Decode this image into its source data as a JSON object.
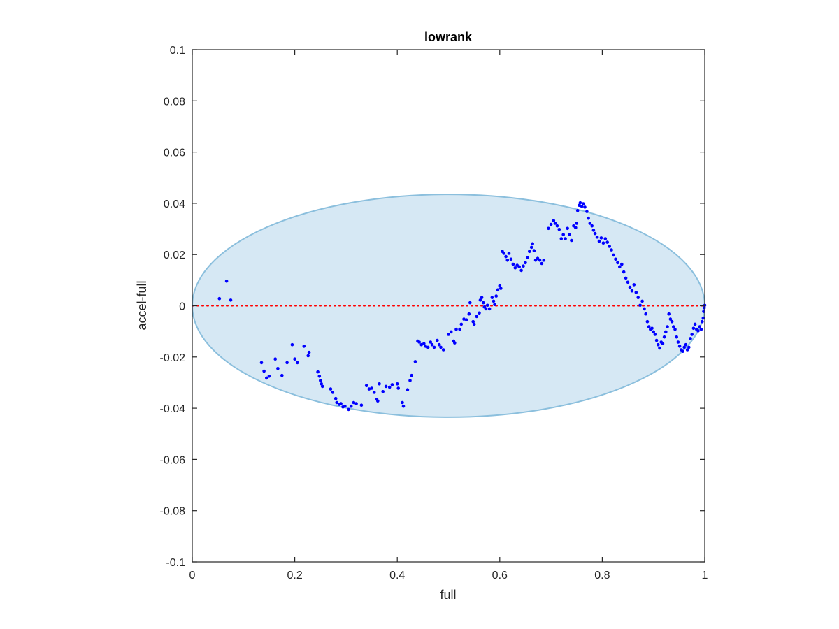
{
  "chart_data": {
    "type": "scatter",
    "title": "lowrank",
    "xlabel": "full",
    "ylabel": "accel-full",
    "xlim": [
      0,
      1
    ],
    "ylim": [
      -0.1,
      0.1
    ],
    "xticks": [
      0,
      0.2,
      0.4,
      0.6,
      0.8,
      1
    ],
    "xtick_labels": [
      "0",
      "0.2",
      "0.4",
      "0.6",
      "0.8",
      "1"
    ],
    "yticks": [
      -0.1,
      -0.08,
      -0.06,
      -0.04,
      -0.02,
      0,
      0.02,
      0.04,
      0.06,
      0.08,
      0.1
    ],
    "ytick_labels": [
      "-0.1",
      "-0.08",
      "-0.06",
      "-0.04",
      "-0.02",
      "0",
      "0.02",
      "0.04",
      "0.06",
      "0.08",
      "0.1"
    ],
    "grid": false,
    "reference_line": {
      "y": 0,
      "color": "#ff0000",
      "style": "dotted"
    },
    "ellipse": {
      "center": [
        0.5,
        0.0
      ],
      "radius_x": 0.5,
      "radius_y": 0.0435,
      "fill": "#d6e8f4",
      "stroke": "#8bbfdd"
    },
    "marker_color": "#0000ff",
    "points": [
      [
        0.053,
        0.0028
      ],
      [
        0.067,
        0.0096
      ],
      [
        0.075,
        0.0022
      ],
      [
        0.135,
        -0.0222
      ],
      [
        0.14,
        -0.0255
      ],
      [
        0.145,
        -0.0282
      ],
      [
        0.15,
        -0.0275
      ],
      [
        0.162,
        -0.0208
      ],
      [
        0.167,
        -0.0245
      ],
      [
        0.175,
        -0.0272
      ],
      [
        0.185,
        -0.0222
      ],
      [
        0.195,
        -0.0152
      ],
      [
        0.2,
        -0.0208
      ],
      [
        0.205,
        -0.0222
      ],
      [
        0.218,
        -0.0158
      ],
      [
        0.226,
        -0.0195
      ],
      [
        0.228,
        -0.0182
      ],
      [
        0.245,
        -0.0258
      ],
      [
        0.248,
        -0.0275
      ],
      [
        0.25,
        -0.0292
      ],
      [
        0.252,
        -0.0305
      ],
      [
        0.254,
        -0.0315
      ],
      [
        0.27,
        -0.0325
      ],
      [
        0.274,
        -0.0338
      ],
      [
        0.28,
        -0.0362
      ],
      [
        0.282,
        -0.0378
      ],
      [
        0.287,
        -0.0385
      ],
      [
        0.29,
        -0.0382
      ],
      [
        0.294,
        -0.0395
      ],
      [
        0.298,
        -0.0392
      ],
      [
        0.305,
        -0.0405
      ],
      [
        0.31,
        -0.0392
      ],
      [
        0.315,
        -0.0378
      ],
      [
        0.32,
        -0.0382
      ],
      [
        0.33,
        -0.0388
      ],
      [
        0.34,
        -0.0312
      ],
      [
        0.345,
        -0.0325
      ],
      [
        0.35,
        -0.0322
      ],
      [
        0.355,
        -0.0338
      ],
      [
        0.36,
        -0.0365
      ],
      [
        0.362,
        -0.0372
      ],
      [
        0.365,
        -0.0305
      ],
      [
        0.372,
        -0.0335
      ],
      [
        0.378,
        -0.0315
      ],
      [
        0.385,
        -0.0318
      ],
      [
        0.39,
        -0.0308
      ],
      [
        0.4,
        -0.0305
      ],
      [
        0.402,
        -0.0322
      ],
      [
        0.41,
        -0.0378
      ],
      [
        0.412,
        -0.0392
      ],
      [
        0.42,
        -0.0328
      ],
      [
        0.425,
        -0.0292
      ],
      [
        0.428,
        -0.0272
      ],
      [
        0.435,
        -0.0218
      ],
      [
        0.44,
        -0.0138
      ],
      [
        0.443,
        -0.0142
      ],
      [
        0.447,
        -0.0152
      ],
      [
        0.452,
        -0.0148
      ],
      [
        0.455,
        -0.0158
      ],
      [
        0.46,
        -0.0162
      ],
      [
        0.465,
        -0.0142
      ],
      [
        0.468,
        -0.0152
      ],
      [
        0.472,
        -0.0162
      ],
      [
        0.478,
        -0.0135
      ],
      [
        0.482,
        -0.0152
      ],
      [
        0.485,
        -0.0162
      ],
      [
        0.49,
        -0.0172
      ],
      [
        0.5,
        -0.0112
      ],
      [
        0.505,
        -0.0102
      ],
      [
        0.51,
        -0.0138
      ],
      [
        0.512,
        -0.0145
      ],
      [
        0.515,
        -0.0092
      ],
      [
        0.522,
        -0.0092
      ],
      [
        0.525,
        -0.0072
      ],
      [
        0.53,
        -0.0052
      ],
      [
        0.535,
        -0.0055
      ],
      [
        0.54,
        -0.0032
      ],
      [
        0.542,
        0.0012
      ],
      [
        0.548,
        -0.0062
      ],
      [
        0.55,
        -0.0072
      ],
      [
        0.555,
        -0.0042
      ],
      [
        0.56,
        -0.0028
      ],
      [
        0.562,
        0.0022
      ],
      [
        0.565,
        0.0032
      ],
      [
        0.568,
        0.0012
      ],
      [
        0.57,
        -0.0005
      ],
      [
        0.573,
        -0.0012
      ],
      [
        0.576,
        0.0002
      ],
      [
        0.58,
        -0.0012
      ],
      [
        0.585,
        0.0032
      ],
      [
        0.588,
        0.0018
      ],
      [
        0.59,
        0.0005
      ],
      [
        0.593,
        0.0038
      ],
      [
        0.596,
        0.0062
      ],
      [
        0.6,
        0.0078
      ],
      [
        0.602,
        0.0068
      ],
      [
        0.605,
        0.0212
      ],
      [
        0.608,
        0.0205
      ],
      [
        0.612,
        0.0192
      ],
      [
        0.615,
        0.0178
      ],
      [
        0.618,
        0.0205
      ],
      [
        0.622,
        0.0182
      ],
      [
        0.626,
        0.0162
      ],
      [
        0.63,
        0.0148
      ],
      [
        0.634,
        0.0158
      ],
      [
        0.638,
        0.0152
      ],
      [
        0.642,
        0.0138
      ],
      [
        0.646,
        0.0155
      ],
      [
        0.65,
        0.0168
      ],
      [
        0.654,
        0.0188
      ],
      [
        0.658,
        0.0212
      ],
      [
        0.662,
        0.0228
      ],
      [
        0.664,
        0.0242
      ],
      [
        0.667,
        0.0215
      ],
      [
        0.67,
        0.0178
      ],
      [
        0.674,
        0.0185
      ],
      [
        0.678,
        0.0178
      ],
      [
        0.682,
        0.0165
      ],
      [
        0.686,
        0.0178
      ],
      [
        0.695,
        0.0302
      ],
      [
        0.7,
        0.0318
      ],
      [
        0.705,
        0.0332
      ],
      [
        0.708,
        0.0322
      ],
      [
        0.712,
        0.0312
      ],
      [
        0.716,
        0.0298
      ],
      [
        0.72,
        0.0262
      ],
      [
        0.724,
        0.0278
      ],
      [
        0.728,
        0.0262
      ],
      [
        0.732,
        0.0302
      ],
      [
        0.736,
        0.0278
      ],
      [
        0.74,
        0.0255
      ],
      [
        0.744,
        0.0312
      ],
      [
        0.748,
        0.0305
      ],
      [
        0.75,
        0.0322
      ],
      [
        0.752,
        0.0372
      ],
      [
        0.755,
        0.0392
      ],
      [
        0.757,
        0.0402
      ],
      [
        0.76,
        0.0388
      ],
      [
        0.763,
        0.0398
      ],
      [
        0.766,
        0.0385
      ],
      [
        0.77,
        0.0368
      ],
      [
        0.773,
        0.0342
      ],
      [
        0.776,
        0.0322
      ],
      [
        0.78,
        0.0312
      ],
      [
        0.783,
        0.0295
      ],
      [
        0.786,
        0.0282
      ],
      [
        0.79,
        0.0268
      ],
      [
        0.794,
        0.0252
      ],
      [
        0.798,
        0.0265
      ],
      [
        0.802,
        0.0245
      ],
      [
        0.806,
        0.0262
      ],
      [
        0.81,
        0.0248
      ],
      [
        0.814,
        0.0232
      ],
      [
        0.818,
        0.0218
      ],
      [
        0.822,
        0.0198
      ],
      [
        0.826,
        0.0182
      ],
      [
        0.83,
        0.0168
      ],
      [
        0.834,
        0.0152
      ],
      [
        0.838,
        0.0162
      ],
      [
        0.842,
        0.0132
      ],
      [
        0.846,
        0.0108
      ],
      [
        0.85,
        0.0092
      ],
      [
        0.854,
        0.0072
      ],
      [
        0.858,
        0.0058
      ],
      [
        0.862,
        0.0082
      ],
      [
        0.866,
        0.0052
      ],
      [
        0.87,
        0.0032
      ],
      [
        0.874,
        0.0002
      ],
      [
        0.878,
        0.0018
      ],
      [
        0.882,
        -0.0012
      ],
      [
        0.885,
        -0.0032
      ],
      [
        0.888,
        -0.0062
      ],
      [
        0.891,
        -0.0082
      ],
      [
        0.894,
        -0.0092
      ],
      [
        0.897,
        -0.0088
      ],
      [
        0.9,
        -0.0102
      ],
      [
        0.903,
        -0.0112
      ],
      [
        0.906,
        -0.0135
      ],
      [
        0.909,
        -0.0152
      ],
      [
        0.912,
        -0.0165
      ],
      [
        0.915,
        -0.0142
      ],
      [
        0.918,
        -0.0148
      ],
      [
        0.921,
        -0.0122
      ],
      [
        0.924,
        -0.0102
      ],
      [
        0.927,
        -0.0082
      ],
      [
        0.93,
        -0.0032
      ],
      [
        0.933,
        -0.0052
      ],
      [
        0.936,
        -0.0062
      ],
      [
        0.939,
        -0.0082
      ],
      [
        0.942,
        -0.0092
      ],
      [
        0.945,
        -0.0122
      ],
      [
        0.948,
        -0.0142
      ],
      [
        0.951,
        -0.0158
      ],
      [
        0.954,
        -0.0172
      ],
      [
        0.957,
        -0.0178
      ],
      [
        0.96,
        -0.0162
      ],
      [
        0.963,
        -0.0152
      ],
      [
        0.966,
        -0.0172
      ],
      [
        0.969,
        -0.0162
      ],
      [
        0.972,
        -0.0128
      ],
      [
        0.975,
        -0.0112
      ],
      [
        0.978,
        -0.0088
      ],
      [
        0.981,
        -0.0072
      ],
      [
        0.984,
        -0.0092
      ],
      [
        0.987,
        -0.0098
      ],
      [
        0.99,
        -0.0082
      ],
      [
        0.993,
        -0.0092
      ],
      [
        0.995,
        -0.0062
      ],
      [
        0.997,
        -0.0048
      ],
      [
        0.998,
        -0.0022
      ],
      [
        0.999,
        -0.0008
      ],
      [
        1.0,
        0.0002
      ]
    ]
  }
}
